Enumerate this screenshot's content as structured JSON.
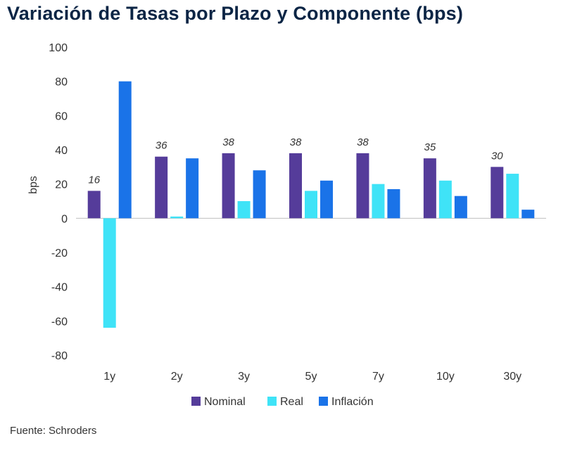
{
  "title": "Variación de Tasas por Plazo y Componente (bps)",
  "source": "Fuente: Schroders",
  "chart_data": {
    "type": "bar",
    "title": "Variación de Tasas por Plazo y Componente (bps)",
    "xlabel": "",
    "ylabel": "bps",
    "ylim": [
      -80,
      100
    ],
    "yticks": [
      100,
      80,
      60,
      40,
      20,
      0,
      -20,
      -40,
      -60,
      -80
    ],
    "categories": [
      "1y",
      "2y",
      "3y",
      "5y",
      "7y",
      "10y",
      "30y"
    ],
    "series": [
      {
        "name": "Nominal",
        "color": "#553c9a",
        "values": [
          16,
          36,
          38,
          38,
          38,
          35,
          30
        ],
        "labels": [
          "16",
          "36",
          "38",
          "38",
          "38",
          "35",
          "30"
        ]
      },
      {
        "name": "Real",
        "color": "#3fe3f7",
        "values": [
          -64,
          1,
          10,
          16,
          20,
          22,
          26
        ]
      },
      {
        "name": "Inflación",
        "color": "#1a73e8",
        "values": [
          80,
          35,
          28,
          22,
          17,
          13,
          5
        ]
      }
    ],
    "legend_position": "bottom"
  }
}
